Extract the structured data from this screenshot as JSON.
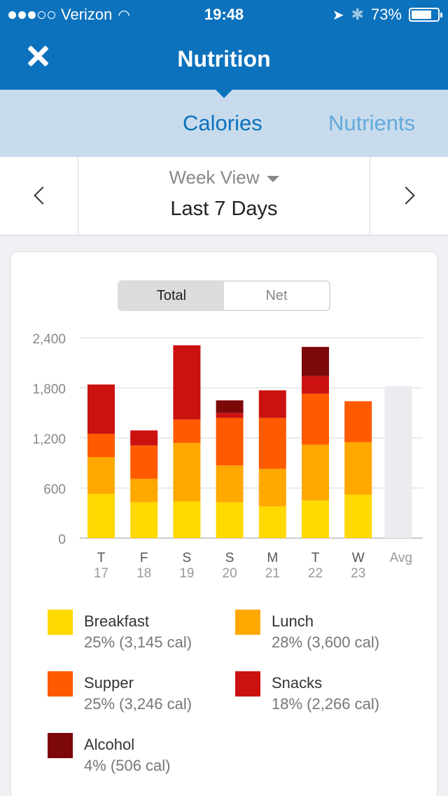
{
  "status": {
    "carrier": "Verizon",
    "time": "19:48",
    "battery": "73%",
    "battery_level": 0.73
  },
  "header": {
    "title": "Nutrition"
  },
  "tabs": [
    {
      "label": "Calories",
      "active": true
    },
    {
      "label": "Nutrients",
      "active": false
    }
  ],
  "date_selector": {
    "view": "Week View",
    "range": "Last 7 Days"
  },
  "toggle": {
    "total": "Total",
    "net": "Net",
    "selected": "Total"
  },
  "colors": {
    "accent": "#0c72bd",
    "breakfast": "#ffd900",
    "lunch": "#ffa800",
    "supper": "#ff5a00",
    "snacks": "#cc1111",
    "alcohol": "#7d0808",
    "avg": "#ebebf0"
  },
  "chart_data": {
    "type": "bar",
    "stacked": true,
    "y_ticks": [
      "2,400",
      "1,800",
      "1,200",
      "600",
      "0"
    ],
    "ylim": [
      0,
      2400
    ],
    "grid": true,
    "categories": [
      {
        "day": "T",
        "date": "17"
      },
      {
        "day": "F",
        "date": "18"
      },
      {
        "day": "S",
        "date": "19"
      },
      {
        "day": "S",
        "date": "20"
      },
      {
        "day": "M",
        "date": "21"
      },
      {
        "day": "T",
        "date": "22"
      },
      {
        "day": "W",
        "date": "23"
      },
      {
        "day": "Avg",
        "date": ""
      }
    ],
    "series": [
      {
        "name": "Breakfast",
        "key": "breakfast",
        "values": [
          530,
          430,
          440,
          430,
          380,
          450,
          520,
          null
        ]
      },
      {
        "name": "Lunch",
        "key": "lunch",
        "values": [
          440,
          280,
          700,
          440,
          450,
          670,
          630,
          null
        ]
      },
      {
        "name": "Supper",
        "key": "supper",
        "values": [
          280,
          400,
          280,
          570,
          610,
          610,
          490,
          null
        ]
      },
      {
        "name": "Snacks",
        "key": "snacks",
        "values": [
          590,
          180,
          890,
          60,
          330,
          210,
          0,
          null
        ]
      },
      {
        "name": "Alcohol",
        "key": "alcohol",
        "values": [
          0,
          0,
          0,
          150,
          0,
          350,
          0,
          null
        ]
      }
    ],
    "avg_total": 1820
  },
  "legend": [
    {
      "name": "Breakfast",
      "key": "breakfast",
      "summary": "25% (3,145 cal)"
    },
    {
      "name": "Lunch",
      "key": "lunch",
      "summary": "28% (3,600 cal)"
    },
    {
      "name": "Supper",
      "key": "supper",
      "summary": "25% (3,246 cal)"
    },
    {
      "name": "Snacks",
      "key": "snacks",
      "summary": "18% (2,266 cal)"
    },
    {
      "name": "Alcohol",
      "key": "alcohol",
      "summary": "4% (506 cal)"
    }
  ]
}
